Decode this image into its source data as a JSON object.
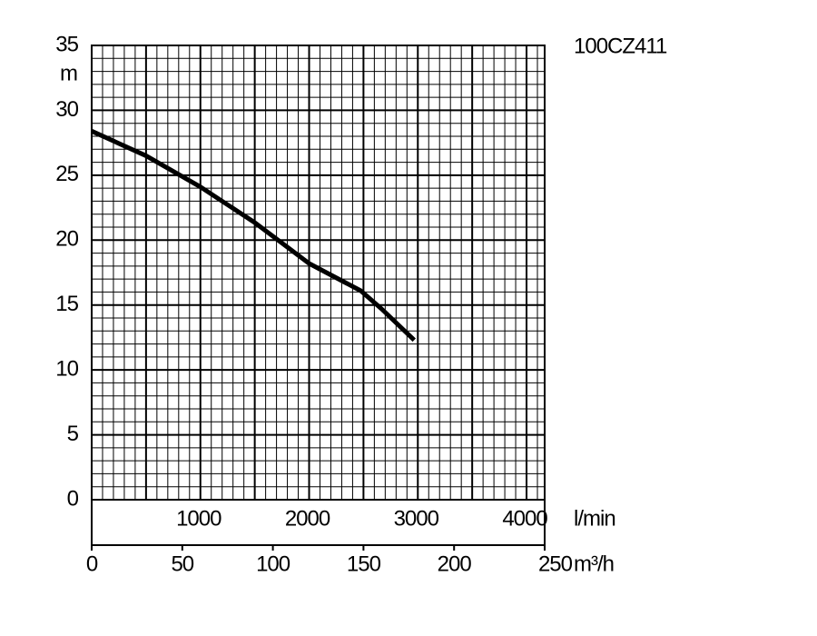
{
  "chart_data": {
    "type": "line",
    "title": "100CZ411",
    "ylabel": "m",
    "xlabel": "m³/h",
    "x2label": "l/min",
    "x": [
      0,
      30,
      60,
      90,
      120,
      148.5,
      160,
      178
    ],
    "series": [
      {
        "color": "#000000",
        "values": [
          28.4,
          26.5,
          24.1,
          21.35,
          18.2,
          16.1,
          14.7,
          12.3
        ]
      }
    ],
    "xlim": [
      0,
      250
    ],
    "xticks": [
      0,
      50,
      100,
      150,
      200,
      250
    ],
    "x2lim": [
      0,
      4166.7
    ],
    "x2ticks": [
      1000,
      2000,
      3000,
      4000
    ],
    "x2grid_lines": [
      0,
      500,
      1000,
      1500,
      2000,
      2500,
      3000,
      3500,
      4000
    ],
    "ylim": [
      0,
      35
    ],
    "yticks": [
      0,
      5,
      10,
      15,
      20,
      25,
      30,
      35
    ],
    "minor_per_major": 5,
    "grid": true
  }
}
